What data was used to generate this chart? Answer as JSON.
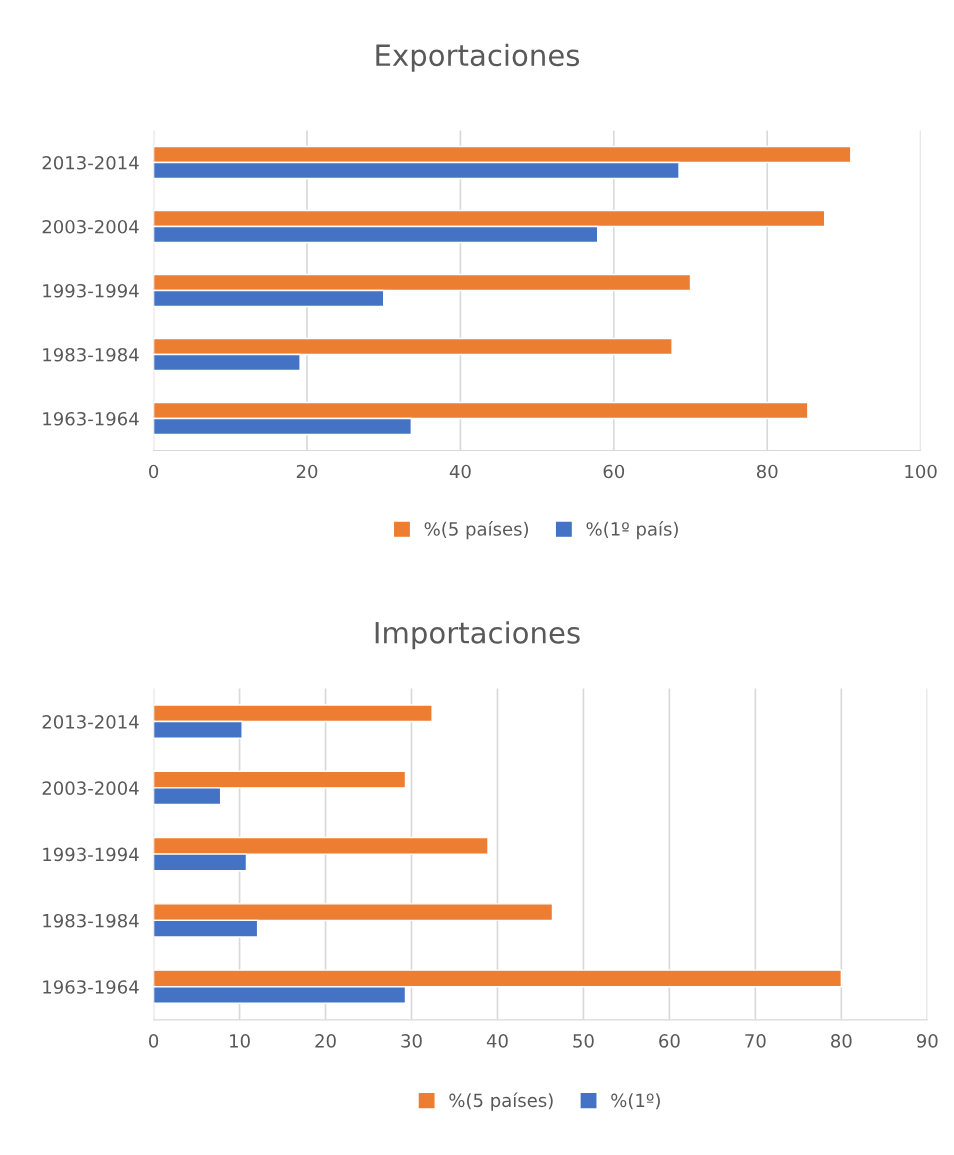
{
  "chart_data": [
    {
      "type": "bar",
      "orientation": "horizontal",
      "title": "Exportaciones",
      "categories": [
        "2013-2014",
        "2003-2004",
        "1993-1994",
        "1983-1984",
        "1963-1964"
      ],
      "series": [
        {
          "name": "%(5 países)",
          "color": "#ed7d31",
          "values": [
            90.9,
            87.5,
            70.0,
            67.6,
            85.3
          ]
        },
        {
          "name": "%(1º país)",
          "color": "#4472c4",
          "values": [
            68.5,
            57.9,
            30.0,
            19.1,
            33.6
          ]
        }
      ],
      "xlim": [
        0,
        100
      ],
      "xticks": [
        0,
        20,
        40,
        60,
        80,
        100
      ],
      "grid": "x",
      "legend": "bottom"
    },
    {
      "type": "bar",
      "orientation": "horizontal",
      "title": "Importaciones",
      "categories": [
        "2013-2014",
        "2003-2004",
        "1993-1994",
        "1983-1984",
        "1963-1964"
      ],
      "series": [
        {
          "name": "%(5 países)",
          "color": "#ed7d31",
          "values": [
            32.4,
            29.3,
            38.9,
            46.4,
            80.0
          ]
        },
        {
          "name": "%(1º)",
          "color": "#4472c4",
          "values": [
            10.3,
            7.8,
            10.8,
            12.1,
            29.3
          ]
        }
      ],
      "xlim": [
        0,
        90
      ],
      "xticks": [
        0,
        10,
        20,
        30,
        40,
        50,
        60,
        70,
        80,
        90
      ],
      "grid": "x",
      "legend": "bottom"
    }
  ]
}
